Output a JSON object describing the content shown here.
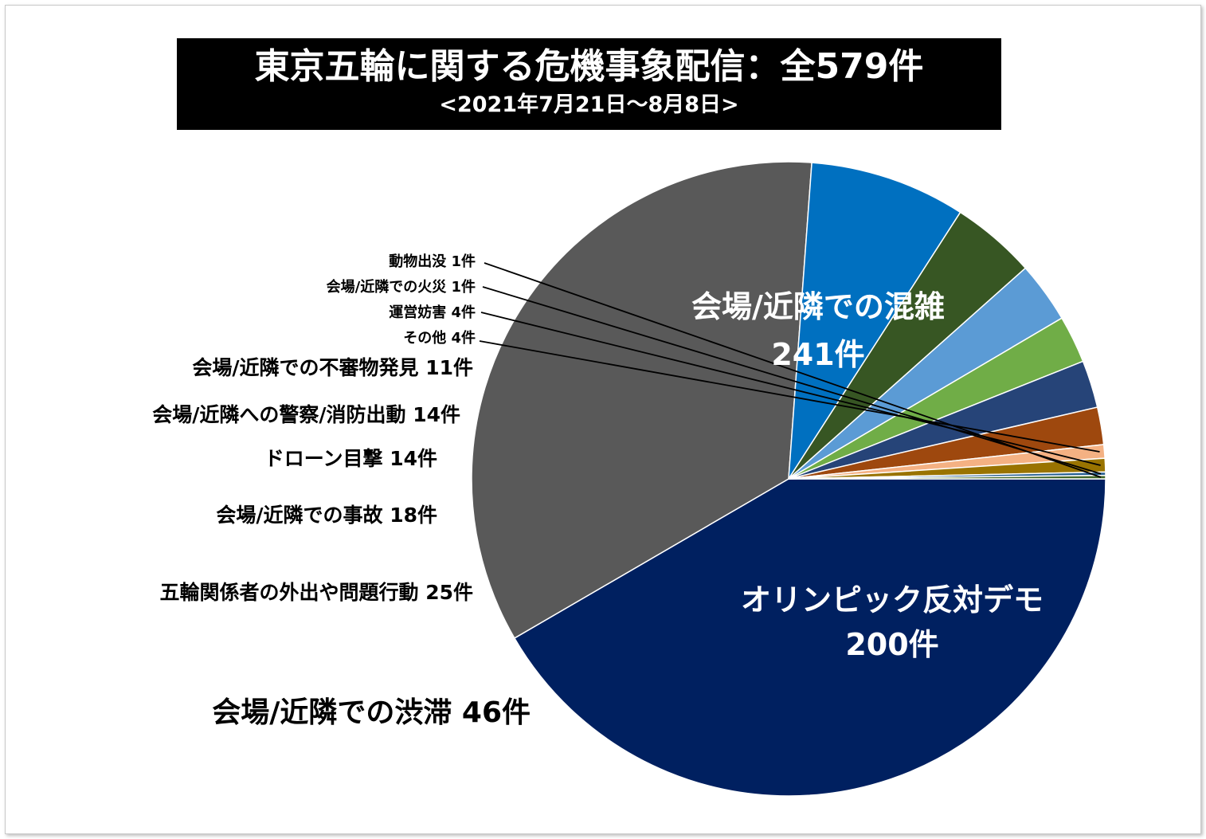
{
  "title": "東京五輪に関する危機事象配信：全579件",
  "subtitle": "<2021年7月21日～8月8日>",
  "chart_data": {
    "type": "pie",
    "total": 579,
    "slices": [
      {
        "label": "会場/近隣での混雑",
        "count": "241件",
        "value": 241,
        "color": "#002060"
      },
      {
        "label": "オリンピック反対デモ",
        "count": "200件",
        "value": 200,
        "color": "#595959"
      },
      {
        "label": "会場/近隣での渋滞 46件",
        "value": 46,
        "color": "#0070C0"
      },
      {
        "label": "五輪関係者の外出や問題行動 25件",
        "value": 25,
        "color": "#375623"
      },
      {
        "label": "会場/近隣での事故 18件",
        "value": 18,
        "color": "#5B9BD5"
      },
      {
        "label": "ドローン目撃 14件",
        "value": 14,
        "color": "#70AD47"
      },
      {
        "label": "会場/近隣への警察/消防出動 14件",
        "value": 14,
        "color": "#264478"
      },
      {
        "label": "会場/近隣での不審物発見 11件",
        "value": 11,
        "color": "#9E480E"
      },
      {
        "label": "その他 4件",
        "value": 4,
        "color": "#F4B183"
      },
      {
        "label": "運営妨害 4件",
        "value": 4,
        "color": "#997300"
      },
      {
        "label": "会場/近隣での火災 1件",
        "value": 1,
        "color": "#255E91"
      },
      {
        "label": "動物出没 1件",
        "value": 1,
        "color": "#43682B"
      }
    ]
  }
}
